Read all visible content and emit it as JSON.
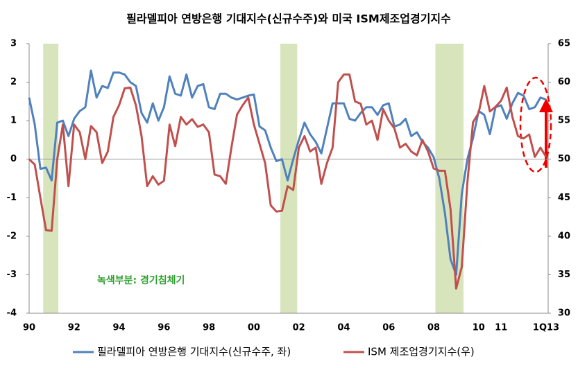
{
  "chart_data": {
    "type": "line",
    "title": "필라델피아 연방은행 기대지수(신규수주)와 미국 ISM제조업경기지수",
    "annotation": "녹색부분: 경기침체기",
    "categories": [
      "90",
      null,
      null,
      null,
      null,
      null,
      null,
      null,
      "92",
      null,
      null,
      null,
      null,
      null,
      null,
      null,
      "94",
      null,
      null,
      null,
      null,
      null,
      null,
      null,
      "96",
      null,
      null,
      null,
      null,
      null,
      null,
      null,
      "98",
      null,
      null,
      null,
      null,
      null,
      null,
      null,
      "00",
      null,
      null,
      null,
      null,
      null,
      null,
      null,
      "02",
      null,
      null,
      null,
      null,
      null,
      null,
      null,
      "04",
      null,
      null,
      null,
      null,
      null,
      null,
      null,
      "06",
      null,
      null,
      null,
      null,
      null,
      null,
      null,
      "08",
      null,
      null,
      null,
      null,
      null,
      null,
      null,
      "10",
      null,
      null,
      null,
      "11",
      null,
      null,
      null,
      null,
      null,
      null,
      null,
      "1Q13"
    ],
    "shaded_ranges": [
      [
        2.5,
        5.2
      ],
      [
        44.7,
        47.7
      ],
      [
        72.3,
        77.3
      ]
    ],
    "shade_color": "#d8e4bc",
    "series": [
      {
        "name": "필라델피아 연방은행 기대지수(신규수주, 좌)",
        "color": "#4f81bd",
        "axis": "y",
        "values": [
          1.6,
          0.9,
          -0.25,
          -0.22,
          -0.55,
          0.95,
          1.0,
          0.6,
          1.05,
          1.25,
          1.35,
          2.3,
          1.6,
          1.9,
          1.85,
          2.25,
          2.25,
          2.2,
          2.0,
          1.9,
          1.2,
          0.95,
          1.45,
          1.0,
          1.35,
          2.15,
          1.7,
          1.65,
          2.2,
          1.6,
          1.9,
          1.95,
          1.35,
          1.3,
          1.7,
          1.7,
          1.6,
          1.55,
          1.6,
          1.65,
          1.68,
          0.85,
          0.75,
          0.3,
          -0.05,
          0.0,
          -0.55,
          0.0,
          0.5,
          0.95,
          0.65,
          0.45,
          0.15,
          0.8,
          1.45,
          1.45,
          1.45,
          1.05,
          1.0,
          1.2,
          1.35,
          1.35,
          1.15,
          1.4,
          1.45,
          0.85,
          0.9,
          1.05,
          0.6,
          0.7,
          0.45,
          0.3,
          0.05,
          -0.5,
          -1.4,
          -2.6,
          -3.0,
          -0.9,
          0.0,
          0.55,
          1.25,
          1.15,
          0.65,
          1.35,
          1.4,
          1.05,
          1.45,
          1.72,
          1.65,
          1.3,
          1.35,
          1.6,
          1.55
        ]
      },
      {
        "name": "ISM 제조업경기지수(우)",
        "color": "#c0504d",
        "axis": "y2",
        "values": [
          50,
          49.3,
          45,
          40.8,
          40.7,
          50,
          54.5,
          46.5,
          54.5,
          53.5,
          50,
          54.3,
          53.5,
          49.5,
          51,
          55.5,
          57,
          59.2,
          59.3,
          57,
          53,
          46.5,
          47.8,
          46.7,
          47.2,
          54.5,
          51.7,
          55.5,
          54.5,
          55.2,
          54.2,
          54.5,
          53.5,
          48,
          47.8,
          46.8,
          51.5,
          55.8,
          57,
          58,
          54.5,
          52,
          49.5,
          44,
          43.2,
          43.3,
          46.5,
          46,
          51.5,
          53,
          51,
          51.5,
          46.8,
          49.5,
          51.5,
          60,
          61,
          61,
          57.5,
          57.2,
          54.5,
          55,
          52.5,
          56.5,
          55,
          54,
          51.5,
          52,
          51,
          50.5,
          52.5,
          51,
          48.8,
          48.5,
          48.5,
          43.5,
          33.2,
          36,
          47,
          54.8,
          56,
          59.5,
          56.2,
          56.8,
          57.6,
          59.3,
          55.5,
          53,
          52.7,
          53.2,
          50.3,
          51.5,
          50.3
        ]
      }
    ],
    "ylim": [
      -4,
      3
    ],
    "yticks": [
      -4,
      -3,
      -2,
      -1,
      0,
      1,
      2,
      3
    ],
    "y2lim": [
      30,
      65
    ],
    "y2ticks": [
      30,
      35,
      40,
      45,
      50,
      55,
      60,
      65
    ],
    "legend": "bottom"
  }
}
